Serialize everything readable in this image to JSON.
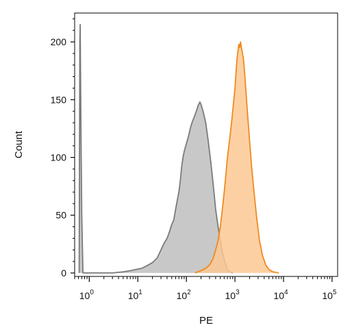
{
  "chart_data": {
    "type": "area",
    "title": "",
    "xlabel": "PE",
    "ylabel": "Count",
    "x_scale": "log",
    "xlim": [
      0.5,
      130000
    ],
    "ylim": [
      -3,
      225
    ],
    "x_ticks": [
      {
        "base": "10",
        "exp": "0",
        "value": 1
      },
      {
        "base": "10",
        "exp": "1",
        "value": 10
      },
      {
        "base": "10",
        "exp": "2",
        "value": 100
      },
      {
        "base": "10",
        "exp": "3",
        "value": 1000
      },
      {
        "base": "10",
        "exp": "4",
        "value": 10000
      },
      {
        "base": "10",
        "exp": "5",
        "value": 100000
      }
    ],
    "y_ticks": [
      {
        "label": "0",
        "value": 0
      },
      {
        "label": "50",
        "value": 50
      },
      {
        "label": "100",
        "value": 100
      },
      {
        "label": "150",
        "value": 150
      },
      {
        "label": "200",
        "value": 200
      }
    ],
    "series": [
      {
        "fill": "#c8c8c8",
        "stroke": "#7a7a7a",
        "points": [
          [
            0.62,
            0
          ],
          [
            0.64,
            200
          ],
          [
            0.65,
            215
          ],
          [
            0.67,
            140
          ],
          [
            0.7,
            50
          ],
          [
            0.74,
            0
          ],
          [
            3,
            0
          ],
          [
            5,
            1
          ],
          [
            7,
            2
          ],
          [
            9,
            3
          ],
          [
            12,
            4
          ],
          [
            15,
            6
          ],
          [
            20,
            9
          ],
          [
            25,
            13
          ],
          [
            30,
            20
          ],
          [
            35,
            26
          ],
          [
            40,
            30
          ],
          [
            45,
            36
          ],
          [
            50,
            42
          ],
          [
            55,
            46
          ],
          [
            60,
            55
          ],
          [
            65,
            63
          ],
          [
            70,
            70
          ],
          [
            75,
            80
          ],
          [
            80,
            92
          ],
          [
            85,
            100
          ],
          [
            90,
            105
          ],
          [
            100,
            112
          ],
          [
            110,
            118
          ],
          [
            120,
            125
          ],
          [
            130,
            130
          ],
          [
            145,
            135
          ],
          [
            160,
            140
          ],
          [
            175,
            145
          ],
          [
            190,
            148
          ],
          [
            200,
            146
          ],
          [
            220,
            140
          ],
          [
            250,
            130
          ],
          [
            280,
            115
          ],
          [
            320,
            95
          ],
          [
            360,
            75
          ],
          [
            400,
            55
          ],
          [
            450,
            40
          ],
          [
            500,
            28
          ],
          [
            550,
            18
          ],
          [
            600,
            12
          ],
          [
            650,
            7
          ],
          [
            700,
            3
          ],
          [
            800,
            1
          ],
          [
            900,
            0
          ]
        ]
      },
      {
        "fill": "#fdc893",
        "stroke": "#ee8a20",
        "points": [
          [
            150,
            0
          ],
          [
            200,
            2
          ],
          [
            250,
            4
          ],
          [
            300,
            7
          ],
          [
            350,
            12
          ],
          [
            400,
            20
          ],
          [
            450,
            28
          ],
          [
            500,
            40
          ],
          [
            550,
            55
          ],
          [
            600,
            70
          ],
          [
            650,
            85
          ],
          [
            700,
            100
          ],
          [
            750,
            110
          ],
          [
            800,
            120
          ],
          [
            850,
            130
          ],
          [
            900,
            140
          ],
          [
            1000,
            160
          ],
          [
            1100,
            185
          ],
          [
            1200,
            198
          ],
          [
            1250,
            195
          ],
          [
            1300,
            200
          ],
          [
            1350,
            196
          ],
          [
            1400,
            192
          ],
          [
            1500,
            185
          ],
          [
            1600,
            170
          ],
          [
            1700,
            155
          ],
          [
            1800,
            140
          ],
          [
            2000,
            115
          ],
          [
            2200,
            92
          ],
          [
            2500,
            68
          ],
          [
            2800,
            48
          ],
          [
            3200,
            28
          ],
          [
            3700,
            15
          ],
          [
            4300,
            7
          ],
          [
            5000,
            3
          ],
          [
            6000,
            1
          ],
          [
            8000,
            0
          ]
        ]
      }
    ],
    "grid": false,
    "legend": "none"
  }
}
